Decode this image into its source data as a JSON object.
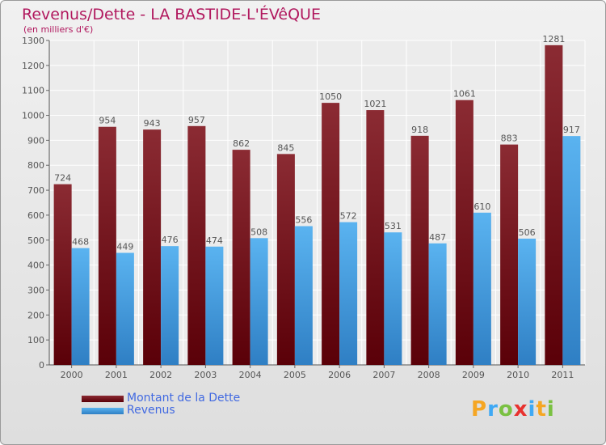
{
  "chart_data": {
    "type": "bar",
    "title": "Revenus/Dette - LA BASTIDE-L'ÉVêQUE",
    "subtitle": "(en milliers d'€)",
    "categories": [
      "2000",
      "2001",
      "2002",
      "2003",
      "2004",
      "2005",
      "2006",
      "2007",
      "2008",
      "2009",
      "2010",
      "2011"
    ],
    "series": [
      {
        "name": "Montant de la Dette",
        "color": "#6b0d15",
        "values": [
          724,
          954,
          943,
          957,
          862,
          845,
          1050,
          1021,
          918,
          1061,
          883,
          1281
        ]
      },
      {
        "name": "Revenus",
        "color": "#4ea6e6",
        "values": [
          468,
          449,
          476,
          474,
          508,
          556,
          572,
          531,
          487,
          610,
          506,
          917
        ]
      }
    ],
    "ylim": [
      0,
      1300
    ],
    "yticks": [
      0,
      100,
      200,
      300,
      400,
      500,
      600,
      700,
      800,
      900,
      1000,
      1100,
      1200,
      1300
    ],
    "grid": true,
    "legend_position": "bottom-left"
  },
  "logo": {
    "letters": [
      "P",
      "r",
      "o",
      "x",
      "i",
      "t",
      "i"
    ],
    "colors": [
      "#f5a623",
      "#3fa9f5",
      "#7ac142",
      "#e8322f",
      "#3fa9f5",
      "#f5a623",
      "#7ac142"
    ]
  }
}
